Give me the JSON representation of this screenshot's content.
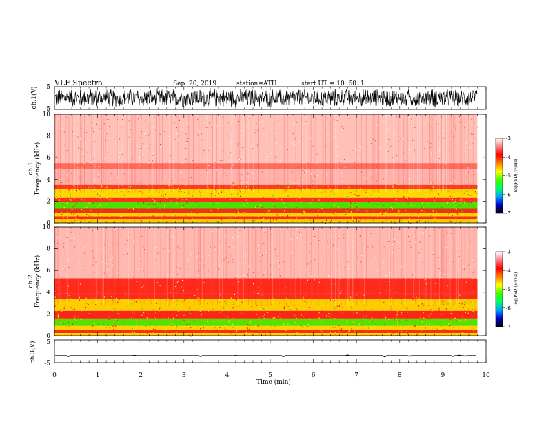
{
  "header": {
    "title": "VLF  Spectra",
    "date": "Sep. 20, 2019",
    "station": "station=ATH",
    "start": "start  UT  =    10: 50: 1"
  },
  "chart_data": [
    {
      "type": "line",
      "name": "ch1-waveform",
      "ylabel": "ch.1(V)",
      "xlim": [
        0,
        10
      ],
      "ylim": [
        -5,
        5
      ],
      "ytick_labels": [
        "5",
        "-5"
      ],
      "data_extent_min": 9.8,
      "amplitude_range": [
        -4.5,
        4.5
      ]
    },
    {
      "type": "heatmap",
      "name": "ch1-spectrogram",
      "ylabel": "ch.1\nFrequency (kHz)",
      "ylabel_top": "ch.1",
      "ylabel_bottom": "Frequency (kHz)",
      "xlim": [
        0,
        10
      ],
      "ylim": [
        0,
        10
      ],
      "ytick_labels": [
        "10",
        "8",
        "6",
        "4",
        "2",
        "0"
      ],
      "data_extent_min": 9.8,
      "bands": [
        {
          "f": [
            0.0,
            0.35
          ],
          "color": "#ffc800"
        },
        {
          "f": [
            0.35,
            0.6
          ],
          "color": "#ff2a1a"
        },
        {
          "f": [
            0.6,
            0.9
          ],
          "color": "#ffd400"
        },
        {
          "f": [
            0.9,
            1.3
          ],
          "color": "#f03018"
        },
        {
          "f": [
            1.3,
            1.9
          ],
          "color": "#4ee000"
        },
        {
          "f": [
            1.9,
            2.3
          ],
          "color": "#ff3020"
        },
        {
          "f": [
            2.3,
            3.1
          ],
          "color": "#ffd800"
        },
        {
          "f": [
            3.1,
            3.5
          ],
          "color": "#ff3a22"
        },
        {
          "f": [
            3.5,
            5.0
          ],
          "color": "#ffb0a8"
        },
        {
          "f": [
            5.0,
            5.5
          ],
          "color": "#ff6c60"
        },
        {
          "f": [
            5.5,
            10.0
          ],
          "color": "#ffc0b8"
        }
      ]
    },
    {
      "type": "heatmap",
      "name": "ch2-spectrogram",
      "ylabel_top": "ch.2",
      "ylabel_bottom": "Frequency (kHz)",
      "xlim": [
        0,
        10
      ],
      "ylim": [
        0,
        10
      ],
      "ytick_labels": [
        "10",
        "8",
        "6",
        "4",
        "2",
        "0"
      ],
      "data_extent_min": 9.8,
      "bands": [
        {
          "f": [
            0.0,
            0.25
          ],
          "color": "#ffd000"
        },
        {
          "f": [
            0.25,
            0.55
          ],
          "color": "#ff2a1a"
        },
        {
          "f": [
            0.55,
            0.9
          ],
          "color": "#ffd400"
        },
        {
          "f": [
            0.9,
            1.6
          ],
          "color": "#5ae000"
        },
        {
          "f": [
            1.6,
            2.3
          ],
          "color": "#ff2418"
        },
        {
          "f": [
            2.3,
            3.4
          ],
          "color": "#ffcc00"
        },
        {
          "f": [
            3.4,
            3.9
          ],
          "color": "#ff2a1a"
        },
        {
          "f": [
            3.9,
            5.3
          ],
          "color": "#ff2a1a"
        },
        {
          "f": [
            5.3,
            10.0
          ],
          "color": "#ffb8b0"
        }
      ]
    },
    {
      "type": "line",
      "name": "ch3-waveform",
      "ylabel": "ch.3(V)",
      "xlabel": "Time  (min)",
      "xlim": [
        0,
        10
      ],
      "ylim": [
        -5,
        5
      ],
      "ytick_labels": [
        "5",
        "-5"
      ],
      "xtick_labels": [
        "0",
        "1",
        "2",
        "3",
        "4",
        "5",
        "6",
        "7",
        "8",
        "9",
        "10"
      ],
      "data_extent_min": 9.8,
      "level": -2.0
    }
  ],
  "colorbars": [
    {
      "name": "ch1-colorbar",
      "label": "log(PSD)(V²/Hz)",
      "tick_labels": [
        "-3",
        "-4",
        "-5",
        "-6",
        "-7"
      ],
      "range": [
        -7,
        -3
      ]
    },
    {
      "name": "ch2-colorbar",
      "label": "log(PSD)(V²/Hz)",
      "tick_labels": [
        "-3",
        "-4",
        "-5",
        "-6",
        "-7"
      ],
      "range": [
        -7,
        -3
      ]
    }
  ],
  "colormap": [
    "#000000",
    "#0000c8",
    "#00a0ff",
    "#00ff60",
    "#40ff00",
    "#ffff00",
    "#ff8000",
    "#ff0000",
    "#ff8080",
    "#ffffff"
  ]
}
